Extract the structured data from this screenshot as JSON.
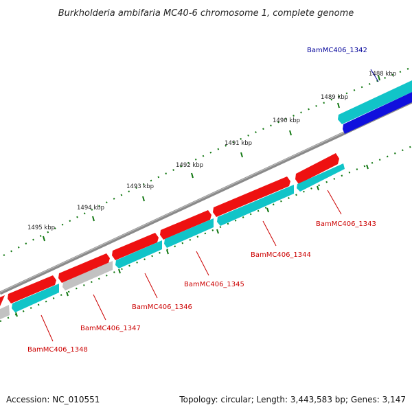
{
  "title": "Burkholderia ambifaria MC40-6 chromosome 1, complete genome",
  "footer": {
    "accession": "Accession: NC_010551",
    "topology": "Topology: circular; Length: 3,443,583 bp; Genes: 3,147"
  },
  "colors": {
    "forward_gene": "#ee1111",
    "reverse_gene": "#11c4c8",
    "highlight_gene": "#1010dd",
    "pseudo_gene": "#c2c2c2",
    "backbone": "#8a8a8a",
    "tick": "#117711",
    "label_red": "#cc0000",
    "label_blue": "#000099"
  },
  "ticks": [
    {
      "label": "1488 kbp"
    },
    {
      "label": "1489 kbp"
    },
    {
      "label": "1490 kbp"
    },
    {
      "label": "1491 kbp"
    },
    {
      "label": "1492 kbp"
    },
    {
      "label": "1493 kbp"
    },
    {
      "label": "1494 kbp"
    },
    {
      "label": "1495 kbp"
    }
  ],
  "gene_labels": [
    {
      "text": "BamMC406_1342",
      "color": "blue"
    },
    {
      "text": "BamMC406_1343",
      "color": "red"
    },
    {
      "text": "BamMC406_1344",
      "color": "red"
    },
    {
      "text": "BamMC406_1345",
      "color": "red"
    },
    {
      "text": "BamMC406_1346",
      "color": "red"
    },
    {
      "text": "BamMC406_1347",
      "color": "red"
    },
    {
      "text": "BamMC406_1348",
      "color": "red"
    }
  ]
}
